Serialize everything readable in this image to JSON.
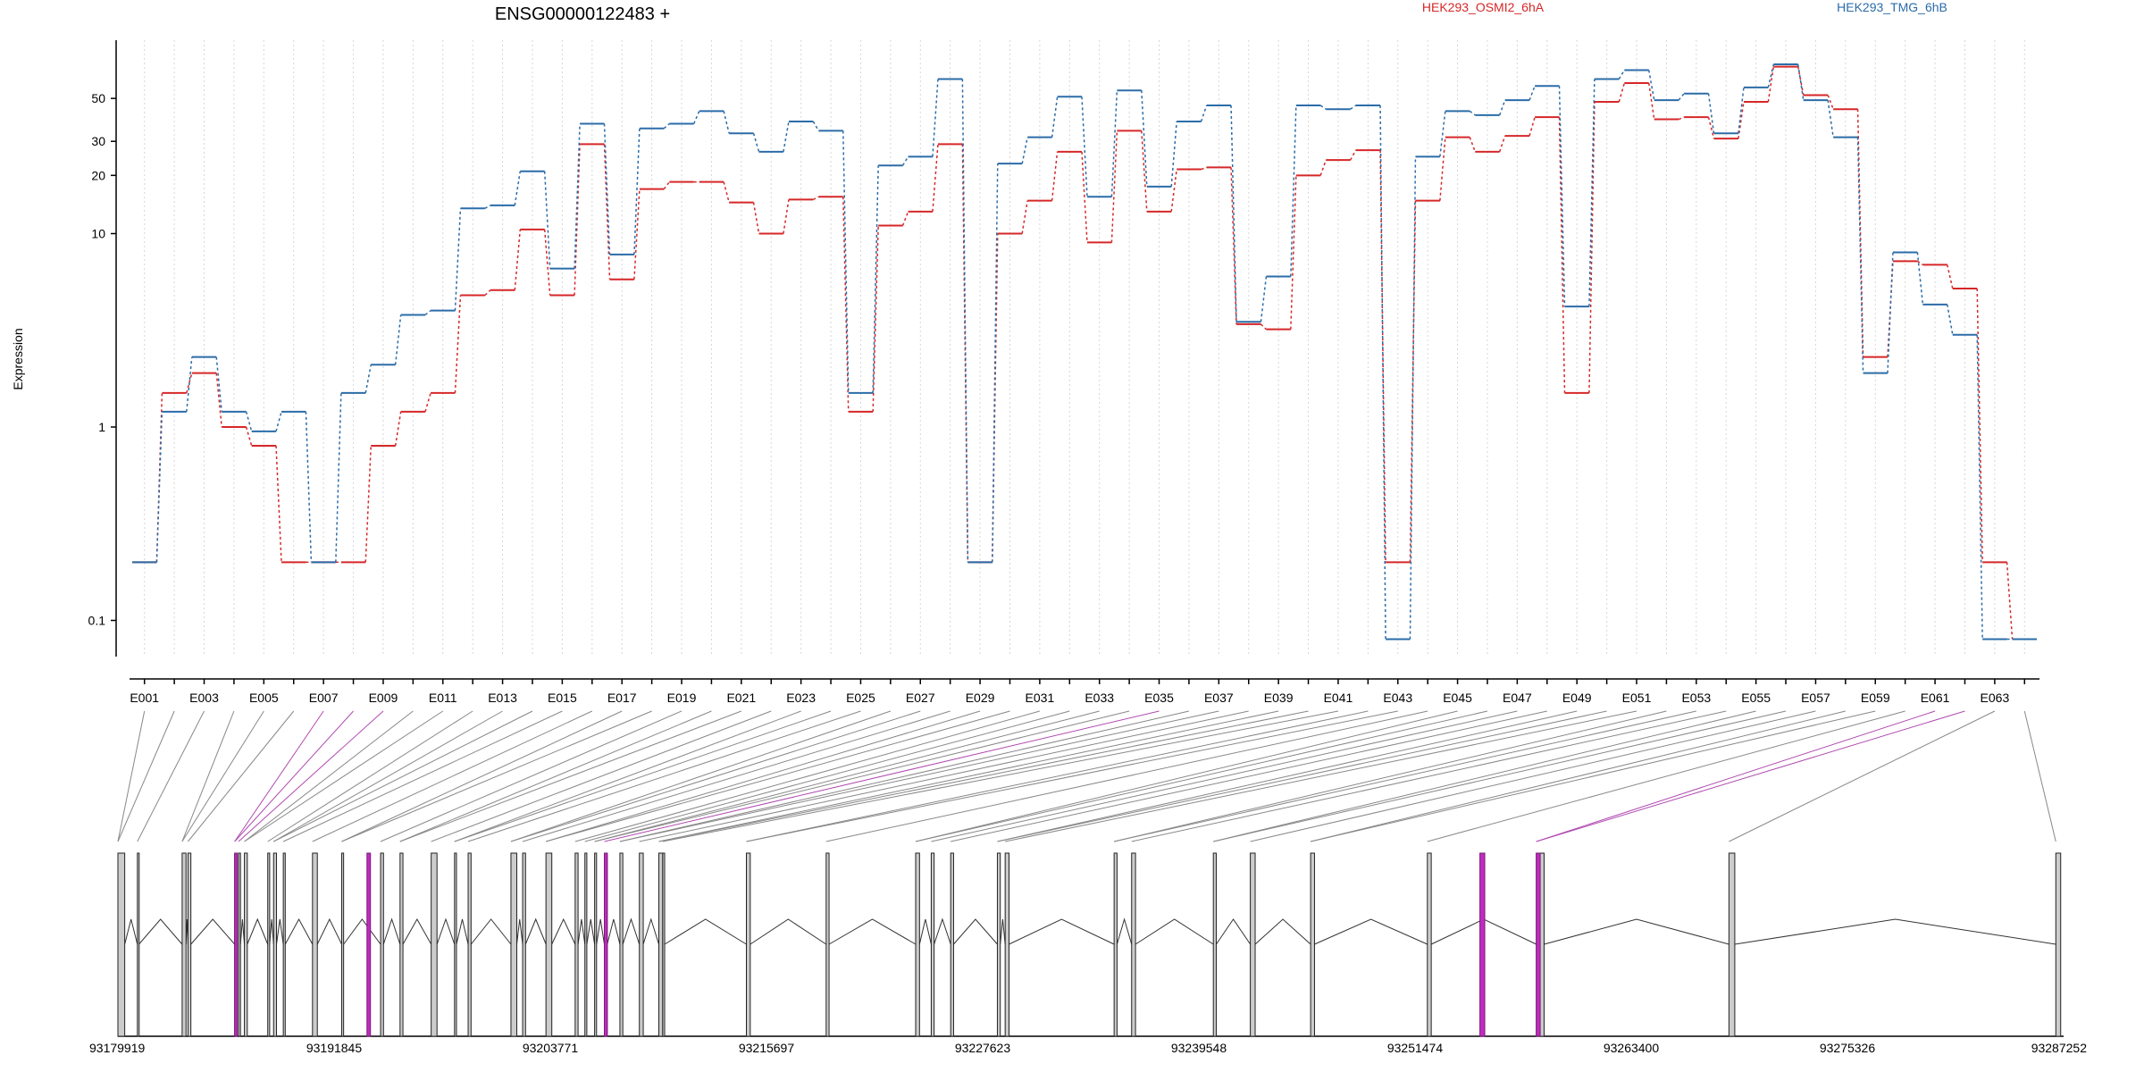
{
  "chart_data": {
    "type": "line",
    "title": "ENSG00000122483 +",
    "ylabel": "Expression",
    "yscale": "log",
    "ylim": [
      0.065,
      100
    ],
    "y_ticks": [
      0.1,
      1,
      10,
      20,
      30,
      50
    ],
    "y_tick_labels": [
      "0.1",
      "1",
      "10",
      "20",
      "30",
      "50"
    ],
    "grid": "vertical dotted",
    "legend_placement": "top-right",
    "x_tick_labels": [
      "E001",
      "E003",
      "E005",
      "E007",
      "E009",
      "E011",
      "E013",
      "E015",
      "E017",
      "E019",
      "E021",
      "E023",
      "E025",
      "E027",
      "E029",
      "E031",
      "E033",
      "E035",
      "E037",
      "E039",
      "E041",
      "E043",
      "E045",
      "E047",
      "E049",
      "E051",
      "E053",
      "E055",
      "E057",
      "E059",
      "E061",
      "E063"
    ],
    "categories": [
      "E001",
      "E002",
      "E003",
      "E004",
      "E005",
      "E006",
      "E007",
      "E008",
      "E009",
      "E010",
      "E011",
      "E012",
      "E013",
      "E014",
      "E015",
      "E016",
      "E017",
      "E018",
      "E019",
      "E020",
      "E021",
      "E022",
      "E023",
      "E024",
      "E025",
      "E026",
      "E027",
      "E028",
      "E029",
      "E030",
      "E031",
      "E032",
      "E033",
      "E034",
      "E035",
      "E036",
      "E037",
      "E038",
      "E039",
      "E040",
      "E041",
      "E042",
      "E043",
      "E044",
      "E045",
      "E046",
      "E047",
      "E048",
      "E049",
      "E050",
      "E051",
      "E052",
      "E053",
      "E054",
      "E055",
      "E056",
      "E057",
      "E058",
      "E059",
      "E060",
      "E061",
      "E062",
      "E063",
      "E064"
    ],
    "series": [
      {
        "name": "HEK293_OSMI2_6hA",
        "color": "#d62728",
        "values": [
          0.2,
          1.5,
          1.9,
          1.0,
          0.8,
          0.2,
          0.2,
          0.2,
          0.8,
          1.2,
          1.5,
          4.8,
          5.1,
          10.5,
          4.8,
          29,
          5.8,
          17,
          18.5,
          18.5,
          14.5,
          10,
          15,
          15.5,
          1.2,
          11,
          13,
          29,
          0.2,
          10,
          14.8,
          26.5,
          9,
          34,
          13,
          21.5,
          22,
          3.4,
          3.2,
          20,
          24,
          27,
          0.2,
          14.8,
          31.5,
          26.5,
          32,
          40,
          1.5,
          48,
          60,
          39,
          40,
          31,
          48,
          73,
          52,
          44,
          2.3,
          7.2,
          6.9,
          5.2,
          0.2,
          0.08
        ]
      },
      {
        "name": "HEK293_TMG_6hB",
        "color": "#2b6ca8",
        "values": [
          0.2,
          1.2,
          2.3,
          1.2,
          0.95,
          1.2,
          0.2,
          1.5,
          2.1,
          3.8,
          4.0,
          13.5,
          14,
          21,
          6.6,
          37,
          7.8,
          35,
          37,
          43,
          33,
          26.5,
          38,
          34,
          1.5,
          22.5,
          25,
          63,
          0.2,
          23,
          31.5,
          51,
          15.5,
          55,
          17.5,
          38,
          46,
          3.5,
          6,
          46,
          44,
          46,
          0.08,
          25,
          43,
          41,
          49,
          58,
          4.2,
          63,
          70,
          49,
          53,
          33,
          57,
          75,
          49,
          31.5,
          1.9,
          8,
          4.3,
          3.0,
          0.08,
          0.08
        ]
      }
    ],
    "bottom_axis_labels": [
      "93179919",
      "93191845",
      "93203771",
      "93215697",
      "93227623",
      "93239548",
      "93251474",
      "93263400",
      "93275326",
      "93287252"
    ],
    "gene_structure": {
      "regions": [
        [
          0,
          0.35
        ],
        [
          1.0,
          1.08
        ],
        [
          3.3,
          3.5
        ],
        [
          3.6,
          3.75
        ],
        [
          6.0,
          6.12
        ],
        [
          6.2,
          6.3
        ],
        [
          6.5,
          6.65
        ],
        [
          7.7,
          7.8
        ],
        [
          8.0,
          8.15
        ],
        [
          8.5,
          8.6
        ],
        [
          10.0,
          10.25
        ],
        [
          11.5,
          11.6
        ],
        [
          13.5,
          13.65
        ],
        [
          14.5,
          14.65
        ],
        [
          16.1,
          16.4
        ],
        [
          17.3,
          17.4
        ],
        [
          18.0,
          18.15
        ],
        [
          20.2,
          20.5
        ],
        [
          20.8,
          20.95
        ],
        [
          22.0,
          22.3
        ],
        [
          23.5,
          23.65
        ],
        [
          24.0,
          24.1
        ],
        [
          24.5,
          24.6
        ],
        [
          25.0,
          25.15
        ],
        [
          25.8,
          25.95
        ],
        [
          26.8,
          27.0
        ],
        [
          27.8,
          28.0
        ],
        [
          28.0,
          28.1
        ],
        [
          32.3,
          32.5
        ],
        [
          36.4,
          36.55
        ],
        [
          41.0,
          41.2
        ],
        [
          41.8,
          41.95
        ],
        [
          42.8,
          42.95
        ],
        [
          45.2,
          45.35
        ],
        [
          45.6,
          45.8
        ],
        [
          51.2,
          51.35
        ],
        [
          52.1,
          52.3
        ],
        [
          56.3,
          56.45
        ],
        [
          58.2,
          58.45
        ],
        [
          61.3,
          61.5
        ],
        [
          67.3,
          67.5
        ],
        [
          72.9,
          73.3
        ],
        [
          82.8,
          83.1
        ],
        [
          99.6,
          99.85
        ]
      ],
      "highlighted_regions": [
        [
          6.0,
          6.12
        ],
        [
          12.8,
          12.98
        ],
        [
          25.0,
          25.15
        ],
        [
          70.0,
          70.25
        ],
        [
          72.9,
          73.1
        ]
      ]
    }
  }
}
